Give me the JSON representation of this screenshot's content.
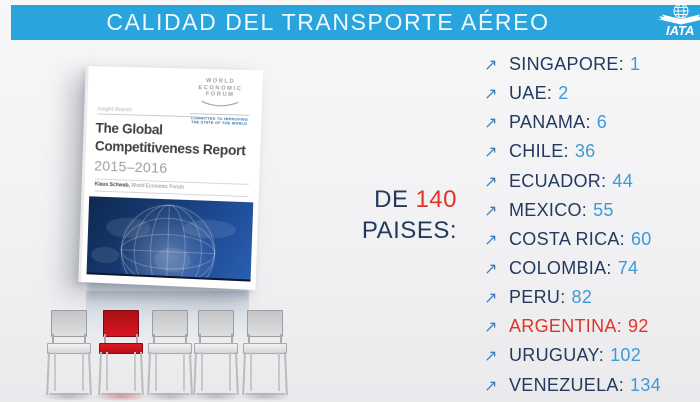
{
  "header": {
    "title": "CALIDAD DEL TRANSPORTE AÉREO",
    "logo_text": "IATA"
  },
  "icons": {
    "rank_arrow": "↗"
  },
  "book_cover": {
    "report_type": "Insight Report",
    "publisher_line1": "WORLD",
    "publisher_line2": "ECONOMIC",
    "publisher_line3": "FORUM",
    "publisher_tagline": "COMMITTED TO IMPROVING THE STATE OF THE WORLD",
    "title_line1": "The Global",
    "title_line2": "Competitiveness Report",
    "edition": "2015–2016",
    "author": "Klaus Schwab,",
    "author_affiliation": " World Economic Forum"
  },
  "caption": {
    "prefix": "DE",
    "number": "140",
    "suffix": "PAISES:"
  },
  "ranking": {
    "items": [
      {
        "country": "SINGAPORE:",
        "rank": "1",
        "highlight": false
      },
      {
        "country": "UAE:",
        "rank": "2",
        "highlight": false
      },
      {
        "country": "PANAMA:",
        "rank": "6",
        "highlight": false
      },
      {
        "country": "CHILE:",
        "rank": "36",
        "highlight": false
      },
      {
        "country": "ECUADOR:",
        "rank": "44",
        "highlight": false
      },
      {
        "country": "MEXICO:",
        "rank": "55",
        "highlight": false
      },
      {
        "country": "COSTA RICA:",
        "rank": "60",
        "highlight": false
      },
      {
        "country": "COLOMBIA:",
        "rank": "74",
        "highlight": false
      },
      {
        "country": "PERU:",
        "rank": "82",
        "highlight": false
      },
      {
        "country": "ARGENTINA:",
        "rank": "92",
        "highlight": true
      },
      {
        "country": "URUGUAY:",
        "rank": "102",
        "highlight": false
      },
      {
        "country": "VENEZUELA:",
        "rank": "134",
        "highlight": false
      }
    ]
  },
  "chairs": {
    "seats": [
      {
        "color": "white"
      },
      {
        "color": "red"
      },
      {
        "color": "white"
      },
      {
        "color": "white"
      },
      {
        "color": "white"
      }
    ]
  },
  "colors": {
    "header_bar": "#29A4DD",
    "country_text": "#233A5E",
    "rank_number": "#3D9BD5",
    "highlight_red": "#E23327",
    "arrow_blue": "#3D7EBE",
    "chair_red": "#D0161E"
  }
}
